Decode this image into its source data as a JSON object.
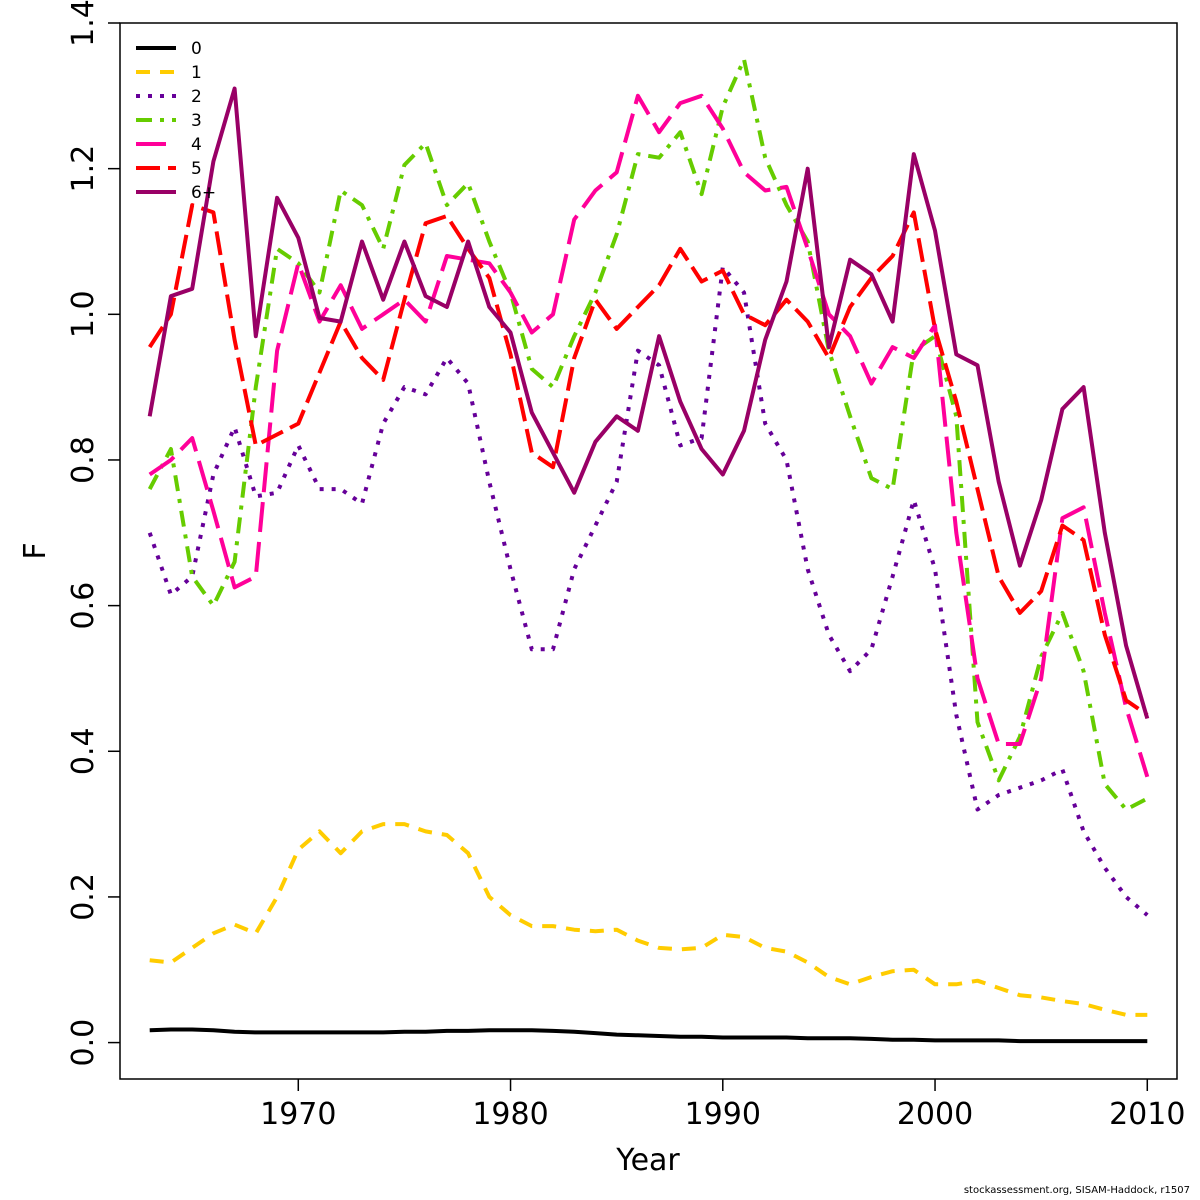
{
  "chart_data": {
    "type": "line",
    "xlabel": "Year",
    "ylabel": "F",
    "xlim": [
      1961.6,
      2011.4
    ],
    "ylim": [
      -0.05,
      1.4
    ],
    "xticks": [
      1970,
      1980,
      1990,
      2000,
      2010
    ],
    "yticks": [
      "0.0",
      "0.2",
      "0.4",
      "0.6",
      "0.8",
      "1.0",
      "1.2",
      "1.4"
    ],
    "legend_position": "top-left",
    "x": [
      1963,
      1964,
      1965,
      1966,
      1967,
      1968,
      1969,
      1970,
      1971,
      1972,
      1973,
      1974,
      1975,
      1976,
      1977,
      1978,
      1979,
      1980,
      1981,
      1982,
      1983,
      1984,
      1985,
      1986,
      1987,
      1988,
      1989,
      1990,
      1991,
      1992,
      1993,
      1994,
      1995,
      1996,
      1997,
      1998,
      1999,
      2000,
      2001,
      2002,
      2003,
      2004,
      2005,
      2006,
      2007,
      2008,
      2009,
      2010
    ],
    "series": [
      {
        "name": "0",
        "color": "#000000",
        "dash": "",
        "values": [
          0.017,
          0.018,
          0.018,
          0.017,
          0.015,
          0.014,
          0.014,
          0.014,
          0.014,
          0.014,
          0.014,
          0.014,
          0.015,
          0.015,
          0.016,
          0.016,
          0.017,
          0.017,
          0.017,
          0.016,
          0.015,
          0.013,
          0.011,
          0.01,
          0.009,
          0.008,
          0.008,
          0.007,
          0.007,
          0.007,
          0.007,
          0.006,
          0.006,
          0.006,
          0.005,
          0.004,
          0.004,
          0.003,
          0.003,
          0.003,
          0.003,
          0.002,
          0.002,
          0.002,
          0.002,
          0.002,
          0.002,
          0.002
        ]
      },
      {
        "name": "1",
        "color": "#ffcc00",
        "dash": "14,10",
        "values": [
          0.113,
          0.11,
          0.13,
          0.15,
          0.162,
          0.15,
          0.2,
          0.265,
          0.29,
          0.26,
          0.29,
          0.3,
          0.3,
          0.29,
          0.285,
          0.26,
          0.2,
          0.175,
          0.16,
          0.16,
          0.155,
          0.153,
          0.155,
          0.14,
          0.13,
          0.128,
          0.13,
          0.148,
          0.145,
          0.13,
          0.125,
          0.11,
          0.09,
          0.08,
          0.09,
          0.098,
          0.1,
          0.08,
          0.08,
          0.085,
          0.075,
          0.065,
          0.062,
          0.057,
          0.053,
          0.045,
          0.038,
          0.038
        ]
      },
      {
        "name": "2",
        "color": "#660099",
        "dash": "4,8",
        "values": [
          0.7,
          0.615,
          0.64,
          0.78,
          0.845,
          0.75,
          0.755,
          0.82,
          0.76,
          0.76,
          0.74,
          0.85,
          0.9,
          0.89,
          0.94,
          0.905,
          0.77,
          0.65,
          0.54,
          0.54,
          0.65,
          0.71,
          0.77,
          0.95,
          0.93,
          0.82,
          0.83,
          1.065,
          1.03,
          0.85,
          0.8,
          0.65,
          0.56,
          0.51,
          0.54,
          0.64,
          0.745,
          0.65,
          0.45,
          0.32,
          0.34,
          0.35,
          0.36,
          0.375,
          0.29,
          0.24,
          0.2,
          0.175
        ]
      },
      {
        "name": "3",
        "color": "#66cc00",
        "dash": "16,8,4,8",
        "values": [
          0.76,
          0.815,
          0.64,
          0.6,
          0.66,
          0.9,
          1.09,
          1.07,
          1.03,
          1.17,
          1.15,
          1.09,
          1.205,
          1.235,
          1.15,
          1.18,
          1.1,
          1.03,
          0.925,
          0.9,
          0.97,
          1.03,
          1.11,
          1.22,
          1.215,
          1.25,
          1.165,
          1.285,
          1.35,
          1.215,
          1.15,
          1.1,
          0.95,
          0.86,
          0.775,
          0.76,
          0.95,
          0.97,
          0.86,
          0.44,
          0.36,
          0.42,
          0.53,
          0.59,
          0.51,
          0.355,
          0.32,
          0.335
        ]
      },
      {
        "name": "4",
        "color": "#ff0099",
        "dash": "30,10",
        "values": [
          0.78,
          0.8,
          0.83,
          0.73,
          0.625,
          0.64,
          0.95,
          1.07,
          0.99,
          1.04,
          0.98,
          1.0,
          1.02,
          0.99,
          1.08,
          1.075,
          1.07,
          1.03,
          0.975,
          1.0,
          1.13,
          1.17,
          1.195,
          1.3,
          1.25,
          1.29,
          1.3,
          1.255,
          1.195,
          1.17,
          1.175,
          1.09,
          1.0,
          0.97,
          0.905,
          0.955,
          0.94,
          0.985,
          0.7,
          0.5,
          0.41,
          0.41,
          0.5,
          0.72,
          0.735,
          0.59,
          0.46,
          0.365
        ]
      },
      {
        "name": "5",
        "color": "#ff0000",
        "dash": "24,8",
        "values": [
          0.955,
          1.0,
          1.15,
          1.14,
          0.965,
          0.82,
          0.835,
          0.85,
          0.92,
          0.99,
          0.94,
          0.91,
          1.02,
          1.125,
          1.135,
          1.09,
          1.05,
          0.945,
          0.81,
          0.79,
          0.94,
          1.02,
          0.98,
          1.01,
          1.04,
          1.09,
          1.045,
          1.06,
          1.0,
          0.985,
          1.02,
          0.99,
          0.94,
          1.01,
          1.05,
          1.08,
          1.14,
          0.98,
          0.88,
          0.76,
          0.64,
          0.59,
          0.62,
          0.71,
          0.69,
          0.56,
          0.47,
          0.45
        ]
      },
      {
        "name": "6+",
        "color": "#990066",
        "dash": "",
        "values": [
          0.86,
          1.025,
          1.035,
          1.21,
          1.31,
          0.97,
          1.16,
          1.105,
          0.995,
          0.99,
          1.1,
          1.02,
          1.1,
          1.025,
          1.01,
          1.1,
          1.01,
          0.975,
          0.865,
          0.81,
          0.755,
          0.825,
          0.86,
          0.84,
          0.97,
          0.88,
          0.815,
          0.78,
          0.84,
          0.965,
          1.045,
          1.2,
          0.955,
          1.075,
          1.055,
          0.99,
          1.22,
          1.115,
          0.945,
          0.93,
          0.77,
          0.655,
          0.745,
          0.87,
          0.9,
          0.7,
          0.545,
          0.445
        ]
      }
    ]
  },
  "footer": "stockassessment.org, SISAM-Haddock, r1507"
}
